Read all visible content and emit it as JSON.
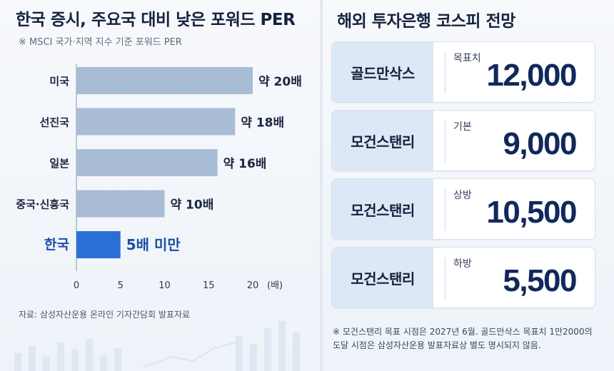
{
  "left": {
    "title": "한국 증시, 주요국 대비 낮은 포워드 PER",
    "subtitle": "※ MSCI 국가·지역 지수 기준 포워드 PER",
    "source": "자료: 삼성자산운용 온라인 기자간담회 발표자료"
  },
  "chart_data": {
    "type": "bar",
    "orientation": "horizontal",
    "categories": [
      "미국",
      "선진국",
      "일본",
      "중국·신흥국",
      "한국"
    ],
    "values": [
      20,
      18,
      16,
      10,
      5
    ],
    "data_labels": [
      "약 20배",
      "약 18배",
      "약 16배",
      "약 10배",
      "5배 미만"
    ],
    "highlight_index": 4,
    "xticks": [
      0,
      5,
      10,
      15,
      20
    ],
    "xunit": "(배)",
    "xlim": [
      0,
      20
    ],
    "colors": {
      "bar": "#a9bcd5",
      "highlight": "#2a6fd6",
      "highlight_text": "#1a4fa8"
    }
  },
  "right": {
    "title": "해외 투자은행 코스피 전망",
    "cards": [
      {
        "bank": "골드만삭스",
        "label": "목표치",
        "value": "12,000"
      },
      {
        "bank": "모건스탠리",
        "label": "기본",
        "value": "9,000"
      },
      {
        "bank": "모건스탠리",
        "label": "상방",
        "value": "10,500"
      },
      {
        "bank": "모건스탠리",
        "label": "하방",
        "value": "5,500"
      }
    ],
    "footnote_line1": "※  모건스탠리 목표 시점은 2027년 6월. 골드만삭스 목표치 1만2000의",
    "footnote_line2": "도달 시점은 삼성자산운용 발표자료상 별도 명시되지 않음."
  }
}
